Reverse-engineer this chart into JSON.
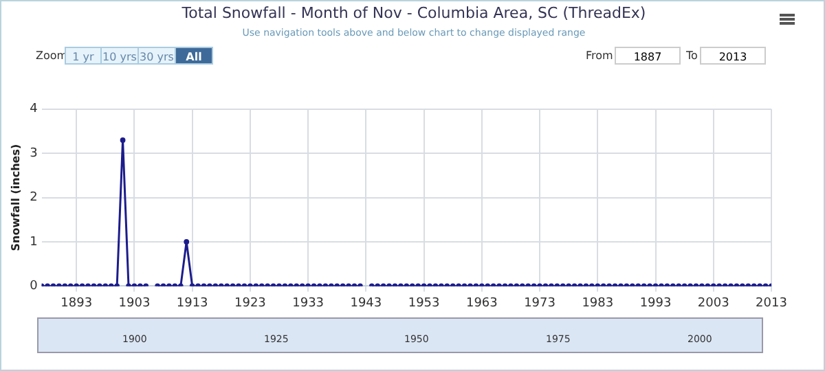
{
  "chart_data": {
    "type": "line",
    "title": "Total Snowfall - Month of Nov - Columbia Area, SC (ThreadEx)",
    "subtitle": "Use navigation tools above and below chart to change displayed range",
    "ylabel": "Snowfall (inches)",
    "annotations": [
      "Zoom",
      "1 yr",
      "10 yrs",
      "30 yrs",
      "All",
      "From",
      "1887",
      "To",
      "2013",
      "1900",
      "1925",
      "1950",
      "1975",
      "2000"
    ],
    "x": [
      1887,
      1888,
      1889,
      1890,
      1891,
      1892,
      1893,
      1894,
      1895,
      1896,
      1897,
      1898,
      1899,
      1900,
      1901,
      1902,
      1903,
      1904,
      1905,
      1906,
      1907,
      1908,
      1909,
      1910,
      1911,
      1912,
      1913,
      1914,
      1915,
      1916,
      1917,
      1918,
      1919,
      1920,
      1921,
      1922,
      1923,
      1924,
      1925,
      1926,
      1927,
      1928,
      1929,
      1930,
      1931,
      1932,
      1933,
      1934,
      1935,
      1936,
      1937,
      1938,
      1939,
      1940,
      1941,
      1942,
      1943,
      1944,
      1945,
      1946,
      1947,
      1948,
      1949,
      1950,
      1951,
      1952,
      1953,
      1954,
      1955,
      1956,
      1957,
      1958,
      1959,
      1960,
      1961,
      1962,
      1963,
      1964,
      1965,
      1966,
      1967,
      1968,
      1969,
      1970,
      1971,
      1972,
      1973,
      1974,
      1975,
      1976,
      1977,
      1978,
      1979,
      1980,
      1981,
      1982,
      1983,
      1984,
      1985,
      1986,
      1987,
      1988,
      1989,
      1990,
      1991,
      1992,
      1993,
      1994,
      1995,
      1996,
      1997,
      1998,
      1999,
      2000,
      2001,
      2002,
      2003,
      2004,
      2005,
      2006,
      2007,
      2008,
      2009,
      2010,
      2011,
      2012,
      2013
    ],
    "series": [
      {
        "color": "#1c1c8c",
        "values": [
          0,
          0,
          0,
          0,
          0,
          0,
          0,
          0,
          0,
          0,
          0,
          0,
          0,
          0,
          3.3,
          0,
          0,
          0,
          0,
          null,
          0,
          0,
          0,
          0,
          0,
          1,
          0,
          0,
          0,
          0,
          0,
          0,
          0,
          0,
          0,
          0,
          0,
          0,
          0,
          0,
          0,
          0,
          0,
          0,
          0,
          0,
          0,
          0,
          0,
          0,
          0,
          0,
          0,
          0,
          0,
          0,
          null,
          0,
          0,
          0,
          0,
          0,
          0,
          0,
          0,
          0,
          0,
          0,
          0,
          0,
          0,
          0,
          0,
          0,
          0,
          0,
          0,
          0,
          0,
          0,
          0,
          0,
          0,
          0,
          0,
          0,
          0,
          0,
          0,
          0,
          0,
          0,
          0,
          0,
          0,
          0,
          0,
          0,
          0,
          0,
          0,
          0,
          0,
          0,
          0,
          0,
          0,
          0,
          0,
          0,
          0,
          0,
          0,
          0,
          0,
          0,
          0,
          0,
          0,
          0,
          0,
          0,
          0,
          0,
          0,
          0,
          0
        ]
      }
    ],
    "xlim": [
      1887,
      2013
    ],
    "xticks": [
      1893,
      1903,
      1913,
      1923,
      1933,
      1943,
      1953,
      1963,
      1973,
      1983,
      1993,
      2003,
      2013
    ],
    "ylim": [
      0,
      4
    ],
    "yticks": [
      0,
      1,
      2,
      3,
      4
    ],
    "grid": true,
    "legend": false,
    "marker": "circle",
    "line_style": "solid"
  }
}
